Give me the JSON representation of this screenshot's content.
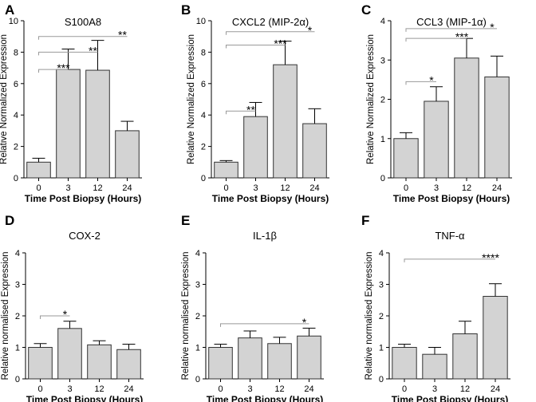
{
  "chart_data": [
    {
      "panel": "A",
      "type": "bar",
      "title": "S100A8",
      "ylabel": "Relative Normalized Expression",
      "xlabel": "Time Post Biopsy (Hours)",
      "categories": [
        "0",
        "3",
        "12",
        "24"
      ],
      "values": [
        1.0,
        6.9,
        6.85,
        3.0
      ],
      "errors": [
        0.25,
        1.3,
        1.9,
        0.6
      ],
      "ylim": [
        0,
        10
      ],
      "yticks": [
        "0",
        "2",
        "4",
        "6",
        "8",
        "10"
      ],
      "significance": [
        {
          "from": "0",
          "to": "3",
          "label": "***",
          "y": 6.9
        },
        {
          "from": "0",
          "to": "12",
          "label": "**",
          "y": 8.0
        },
        {
          "from": "0",
          "to": "24",
          "label": "**",
          "y": 9.0
        }
      ]
    },
    {
      "panel": "B",
      "type": "bar",
      "title": "CXCL2 (MIP-2α)",
      "ylabel": "Relative Normalized Expression",
      "xlabel": "Time Post Biopsy (Hours)",
      "categories": [
        "0",
        "3",
        "12",
        "24"
      ],
      "values": [
        1.0,
        3.9,
        7.2,
        3.45
      ],
      "errors": [
        0.1,
        0.9,
        1.5,
        0.95
      ],
      "ylim": [
        0,
        10
      ],
      "yticks": [
        "0",
        "2",
        "4",
        "6",
        "8",
        "10"
      ],
      "significance": [
        {
          "from": "0",
          "to": "3",
          "label": "**",
          "y": 4.25
        },
        {
          "from": "0",
          "to": "12",
          "label": "***",
          "y": 8.45
        },
        {
          "from": "0",
          "to": "24",
          "label": "*",
          "y": 9.3
        }
      ]
    },
    {
      "panel": "C",
      "type": "bar",
      "title": "CCL3 (MIP-1α)",
      "ylabel": "Relative Normalized Expression",
      "xlabel": "Time Post Biopsy (Hours)",
      "categories": [
        "0",
        "3",
        "12",
        "24"
      ],
      "values": [
        1.0,
        1.95,
        3.05,
        2.57
      ],
      "errors": [
        0.15,
        0.37,
        0.5,
        0.53
      ],
      "ylim": [
        0,
        4
      ],
      "yticks": [
        "0",
        "1",
        "2",
        "3",
        "4"
      ],
      "significance": [
        {
          "from": "0",
          "to": "3",
          "label": "*",
          "y": 2.45
        },
        {
          "from": "0",
          "to": "12",
          "label": "***",
          "y": 3.55
        },
        {
          "from": "0",
          "to": "24",
          "label": "*",
          "y": 3.8
        }
      ]
    },
    {
      "panel": "D",
      "type": "bar",
      "title": "COX-2",
      "ylabel": "Relative normalised Expression",
      "xlabel": "Time Post Biopsy (Hours)",
      "categories": [
        "0",
        "3",
        "12",
        "24"
      ],
      "values": [
        1.0,
        1.6,
        1.08,
        0.93
      ],
      "errors": [
        0.12,
        0.23,
        0.13,
        0.17
      ],
      "ylim": [
        0,
        4
      ],
      "yticks": [
        "0",
        "1",
        "2",
        "3",
        "4"
      ],
      "significance": [
        {
          "from": "0",
          "to": "3",
          "label": "*",
          "y": 2.0
        }
      ]
    },
    {
      "panel": "E",
      "type": "bar",
      "title": "IL-1β",
      "ylabel": "Relative normalised Expression",
      "xlabel": "Time Post Biopsy (Hours)",
      "categories": [
        "0",
        "3",
        "12",
        "24"
      ],
      "values": [
        1.0,
        1.3,
        1.12,
        1.36
      ],
      "errors": [
        0.1,
        0.22,
        0.2,
        0.25
      ],
      "ylim": [
        0,
        4
      ],
      "yticks": [
        "0",
        "1",
        "2",
        "3",
        "4"
      ],
      "significance": [
        {
          "from": "0",
          "to": "24",
          "label": "*",
          "y": 1.75
        }
      ]
    },
    {
      "panel": "F",
      "type": "bar",
      "title": "TNF-α",
      "ylabel": "Relative normalised Expression",
      "xlabel": "Time Post Biopsy (Hours)",
      "categories": [
        "0",
        "3",
        "12",
        "24"
      ],
      "values": [
        1.0,
        0.78,
        1.43,
        2.62
      ],
      "errors": [
        0.1,
        0.22,
        0.4,
        0.4
      ],
      "ylim": [
        0,
        4
      ],
      "yticks": [
        "0",
        "1",
        "2",
        "3",
        "4"
      ],
      "significance": [
        {
          "from": "0",
          "to": "24",
          "label": "****",
          "y": 3.8
        }
      ]
    }
  ]
}
